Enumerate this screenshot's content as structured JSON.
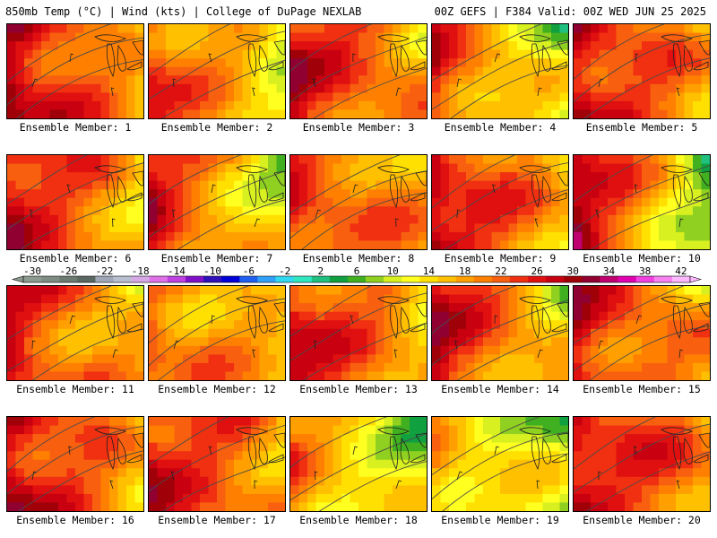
{
  "header": {
    "left": "850mb Temp (°C) | Wind (kts) | College of DuPage NEXLAB",
    "right": "00Z GEFS | F384 Valid: 00Z WED JUN 25 2025"
  },
  "member_label_prefix": "Ensemble Member: ",
  "members": [
    {
      "id": 1,
      "west": 30,
      "east": 18
    },
    {
      "id": 2,
      "west": 24,
      "east": 14
    },
    {
      "id": 3,
      "west": 27,
      "east": 20
    },
    {
      "id": 4,
      "west": 25,
      "east": 12
    },
    {
      "id": 5,
      "west": 28,
      "east": 19
    },
    {
      "id": 6,
      "west": 27,
      "east": 18
    },
    {
      "id": 7,
      "west": 26,
      "east": 13
    },
    {
      "id": 8,
      "west": 25,
      "east": 19
    },
    {
      "id": 9,
      "west": 28,
      "east": 18
    },
    {
      "id": 10,
      "west": 29,
      "east": 10
    },
    {
      "id": 11,
      "west": 26,
      "east": 18
    },
    {
      "id": 12,
      "west": 22,
      "east": 17
    },
    {
      "id": 13,
      "west": 27,
      "east": 18
    },
    {
      "id": 14,
      "west": 28,
      "east": 16
    },
    {
      "id": 15,
      "west": 27,
      "east": 19
    },
    {
      "id": 16,
      "west": 29,
      "east": 18
    },
    {
      "id": 17,
      "west": 26,
      "east": 20
    },
    {
      "id": 18,
      "west": 20,
      "east": 11
    },
    {
      "id": 19,
      "west": 18,
      "east": 11
    },
    {
      "id": 20,
      "west": 27,
      "east": 21
    }
  ],
  "colorbar": {
    "min": -30,
    "max": 44,
    "step": 2,
    "labels": [
      "-30",
      "-26",
      "-22",
      "-18",
      "-14",
      "-10",
      "-6",
      "-2",
      "2",
      "6",
      "10",
      "14",
      "18",
      "22",
      "26",
      "30",
      "34",
      "38",
      "42"
    ],
    "colors": [
      "#8c9a90",
      "#7e8c84",
      "#6c7a72",
      "#5a6862",
      "#a0a8b8",
      "#b8bfd0",
      "#d6a8e6",
      "#e070e8",
      "#c040e0",
      "#8010c8",
      "#3010b8",
      "#0000d8",
      "#2060f0",
      "#30a0f8",
      "#30d8f0",
      "#30e8c0",
      "#20c080",
      "#10a040",
      "#40b020",
      "#90d020",
      "#d8f020",
      "#ffff20",
      "#ffe000",
      "#ffc000",
      "#ffa000",
      "#ff8000",
      "#f86010",
      "#f03010",
      "#e01010",
      "#c80010",
      "#a00008",
      "#900030",
      "#c00070",
      "#e000b0",
      "#f040e0",
      "#f880f0",
      "#ffb8ff"
    ]
  },
  "colors": {
    "contour": "#4a4a4a",
    "coast": "#202020",
    "border": "#000000"
  }
}
